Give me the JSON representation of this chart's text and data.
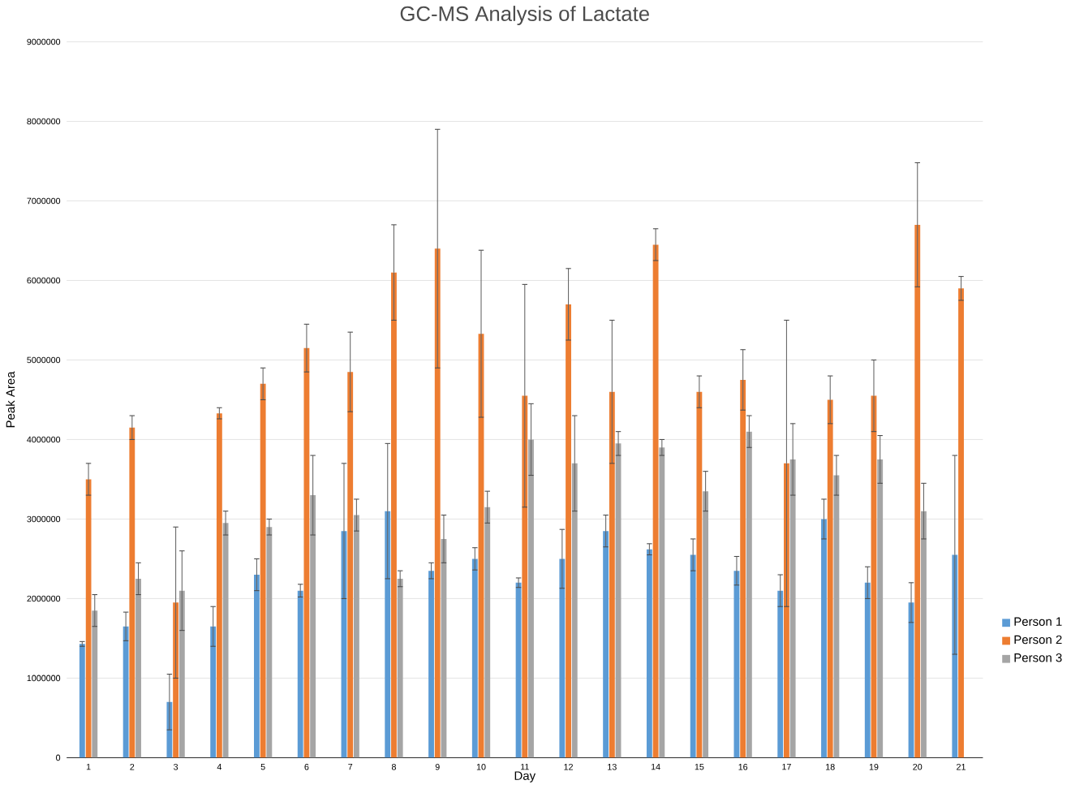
{
  "chart_data": {
    "type": "bar",
    "title": "GC-MS Analysis of Lactate",
    "xlabel": "Day",
    "ylabel": "Peak Area",
    "categories": [
      "1",
      "2",
      "3",
      "4",
      "5",
      "6",
      "7",
      "8",
      "9",
      "10",
      "11",
      "12",
      "13",
      "14",
      "15",
      "16",
      "17",
      "18",
      "19",
      "20",
      "21"
    ],
    "series": [
      {
        "name": "Person 1",
        "color": "#5b9bd5",
        "values": [
          1430000,
          1650000,
          700000,
          1650000,
          2300000,
          2100000,
          2850000,
          3100000,
          2350000,
          2500000,
          2200000,
          2500000,
          2850000,
          2620000,
          2550000,
          2350000,
          2100000,
          3000000,
          2200000,
          1950000,
          2550000
        ],
        "errors": [
          30000,
          180000,
          350000,
          250000,
          200000,
          80000,
          850000,
          850000,
          100000,
          140000,
          60000,
          370000,
          200000,
          70000,
          200000,
          180000,
          200000,
          250000,
          200000,
          250000,
          1250000
        ]
      },
      {
        "name": "Person 2",
        "color": "#ed7d31",
        "values": [
          3500000,
          4150000,
          1950000,
          4330000,
          4700000,
          5150000,
          4850000,
          6100000,
          6400000,
          5330000,
          4550000,
          5700000,
          4600000,
          6450000,
          4600000,
          4750000,
          3700000,
          4500000,
          4550000,
          6700000,
          5900000
        ],
        "errors": [
          200000,
          150000,
          950000,
          70000,
          200000,
          300000,
          500000,
          600000,
          1500000,
          1050000,
          1400000,
          450000,
          900000,
          200000,
          200000,
          380000,
          1800000,
          300000,
          450000,
          780000,
          150000
        ]
      },
      {
        "name": "Person 3",
        "color": "#a5a5a5",
        "values": [
          1850000,
          2250000,
          2100000,
          2950000,
          2900000,
          3300000,
          3050000,
          2250000,
          2750000,
          3150000,
          4000000,
          3700000,
          3950000,
          3900000,
          3350000,
          4100000,
          3750000,
          3550000,
          3750000,
          3100000,
          null
        ],
        "errors": [
          200000,
          200000,
          500000,
          150000,
          100000,
          500000,
          200000,
          100000,
          300000,
          200000,
          450000,
          600000,
          150000,
          100000,
          250000,
          200000,
          450000,
          250000,
          300000,
          350000,
          null
        ]
      }
    ],
    "ylim": [
      0,
      9000000
    ],
    "yticks": [
      0,
      1000000,
      2000000,
      3000000,
      4000000,
      5000000,
      6000000,
      7000000,
      8000000,
      9000000
    ],
    "grid": "y",
    "legend": "right"
  }
}
